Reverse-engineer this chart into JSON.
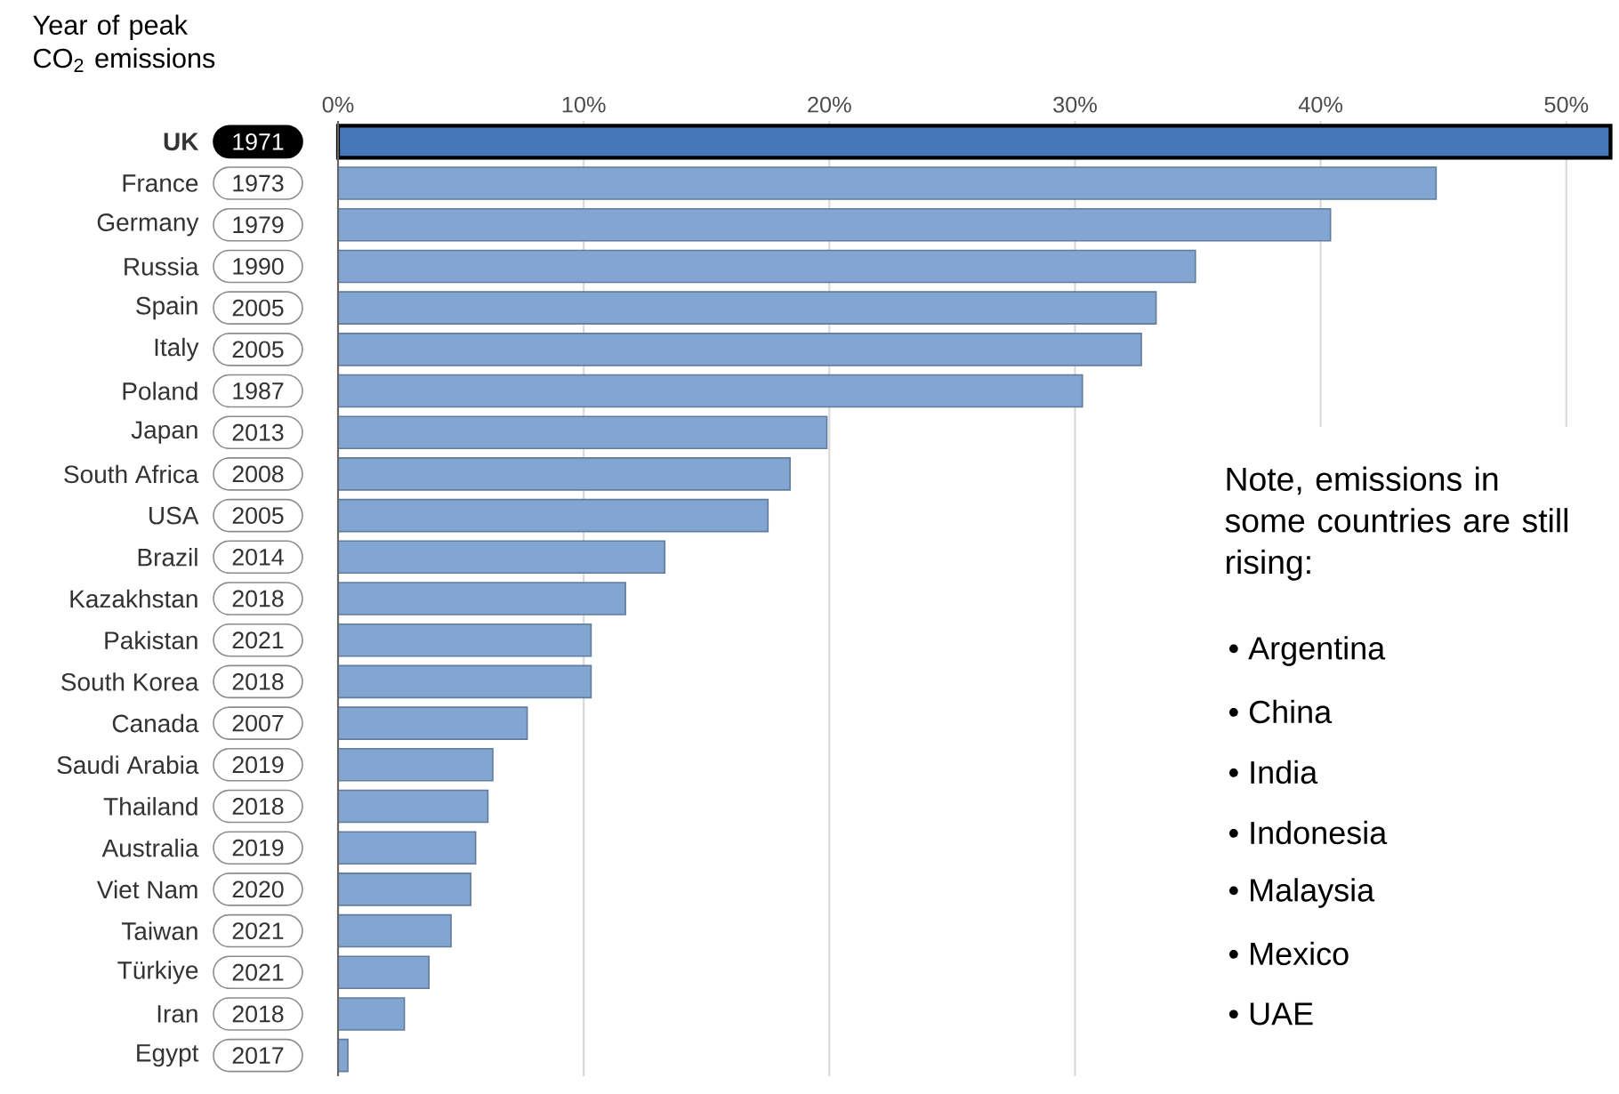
{
  "chart_data": {
    "type": "bar",
    "orientation": "horizontal",
    "categories": [
      "UK",
      "France",
      "Germany",
      "Russia",
      "Spain",
      "Italy",
      "Poland",
      "Japan",
      "South Africa",
      "USA",
      "Brazil",
      "Kazakhstan",
      "Pakistan",
      "South Korea",
      "Canada",
      "Saudi Arabia",
      "Thailand",
      "Australia",
      "Viet Nam",
      "Taiwan",
      "Türkiye",
      "Iran",
      "Egypt"
    ],
    "values": [
      51.8,
      44.7,
      40.4,
      34.9,
      33.3,
      32.7,
      30.3,
      19.9,
      18.4,
      17.5,
      13.3,
      11.7,
      10.3,
      10.3,
      7.7,
      6.3,
      6.1,
      5.6,
      5.4,
      4.6,
      3.7,
      2.7,
      0.4
    ],
    "colors": [
      "#4677b8",
      "#82a5d1",
      "#82a5d1",
      "#82a5d1",
      "#82a5d1",
      "#82a5d1",
      "#82a5d1",
      "#82a5d1",
      "#82a5d1",
      "#82a5d1",
      "#82a5d1",
      "#82a5d1",
      "#82a5d1",
      "#82a5d1",
      "#82a5d1",
      "#82a5d1",
      "#82a5d1",
      "#82a5d1",
      "#82a5d1",
      "#82a5d1",
      "#82a5d1",
      "#82a5d1",
      "#82a5d1"
    ],
    "xlim": [
      0,
      52
    ],
    "xticks": [
      {
        "value": 0,
        "label": "0%"
      },
      {
        "value": 10,
        "label": "10%"
      },
      {
        "value": 20,
        "label": "20%"
      },
      {
        "value": 30,
        "label": "30%"
      },
      {
        "value": 40,
        "label": "40%"
      },
      {
        "value": 50,
        "label": "50%"
      }
    ],
    "grid": "x",
    "annotations": [
      "Year of peak CO$_{2}$ emissions",
      "Note, emissions in some countries are still rising:",
      "• Argentina",
      "• China",
      "• India",
      "• Indonesia",
      "• Malaysia",
      "• Mexico",
      "• UAE",
      "1971",
      "1973",
      "1979",
      "1990",
      "2005",
      "2005",
      "1987",
      "2013",
      "2008",
      "2005",
      "2014",
      "2018",
      "2021",
      "2018",
      "2007",
      "2019",
      "2018",
      "2019",
      "2020",
      "2021",
      "2021",
      "2018",
      "2017"
    ]
  }
}
